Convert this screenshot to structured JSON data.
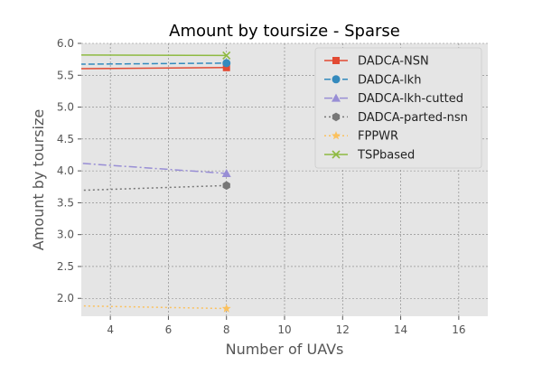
{
  "chart_data": {
    "type": "line",
    "title": "Amount by toursize - Sparse",
    "xlabel": "Number of UAVs",
    "ylabel": "Amount by toursize",
    "xlim": [
      3,
      17
    ],
    "ylim": [
      1.72,
      6.0
    ],
    "xticks": [
      4,
      6,
      8,
      10,
      12,
      14,
      16
    ],
    "yticks": [
      2.0,
      2.5,
      3.0,
      3.5,
      4.0,
      4.5,
      5.0,
      5.5,
      6.0
    ],
    "ytick_labels": [
      "2.0",
      "2.5",
      "3.0",
      "3.5",
      "4.0",
      "4.5",
      "5.0",
      "5.5",
      "6.0"
    ],
    "grid": true,
    "legend_position": "top-right",
    "series": [
      {
        "name": "DADCA-NSN",
        "x": [
          2,
          8
        ],
        "y": [
          5.6,
          5.62
        ],
        "color": "#E24A33",
        "marker": "square",
        "dash": "solid"
      },
      {
        "name": "DADCA-lkh",
        "x": [
          2,
          8
        ],
        "y": [
          5.67,
          5.69
        ],
        "color": "#348ABD",
        "marker": "circle",
        "dash": "dashed"
      },
      {
        "name": "DADCA-lkh-cutted",
        "x": [
          2,
          8
        ],
        "y": [
          4.15,
          3.96
        ],
        "color": "#988ED5",
        "marker": "triangle",
        "dash": "dashdot"
      },
      {
        "name": "DADCA-parted-nsn",
        "x": [
          2,
          8
        ],
        "y": [
          3.68,
          3.77
        ],
        "color": "#777777",
        "marker": "hexagon",
        "dash": "dotted"
      },
      {
        "name": "FPPWR",
        "x": [
          2,
          8
        ],
        "y": [
          1.89,
          1.84
        ],
        "color": "#FBC15E",
        "marker": "star",
        "dash": "dotted"
      },
      {
        "name": "TSPbased",
        "x": [
          2,
          8
        ],
        "y": [
          5.82,
          5.81
        ],
        "color": "#8EBA42",
        "marker": "x",
        "dash": "solid"
      }
    ]
  }
}
